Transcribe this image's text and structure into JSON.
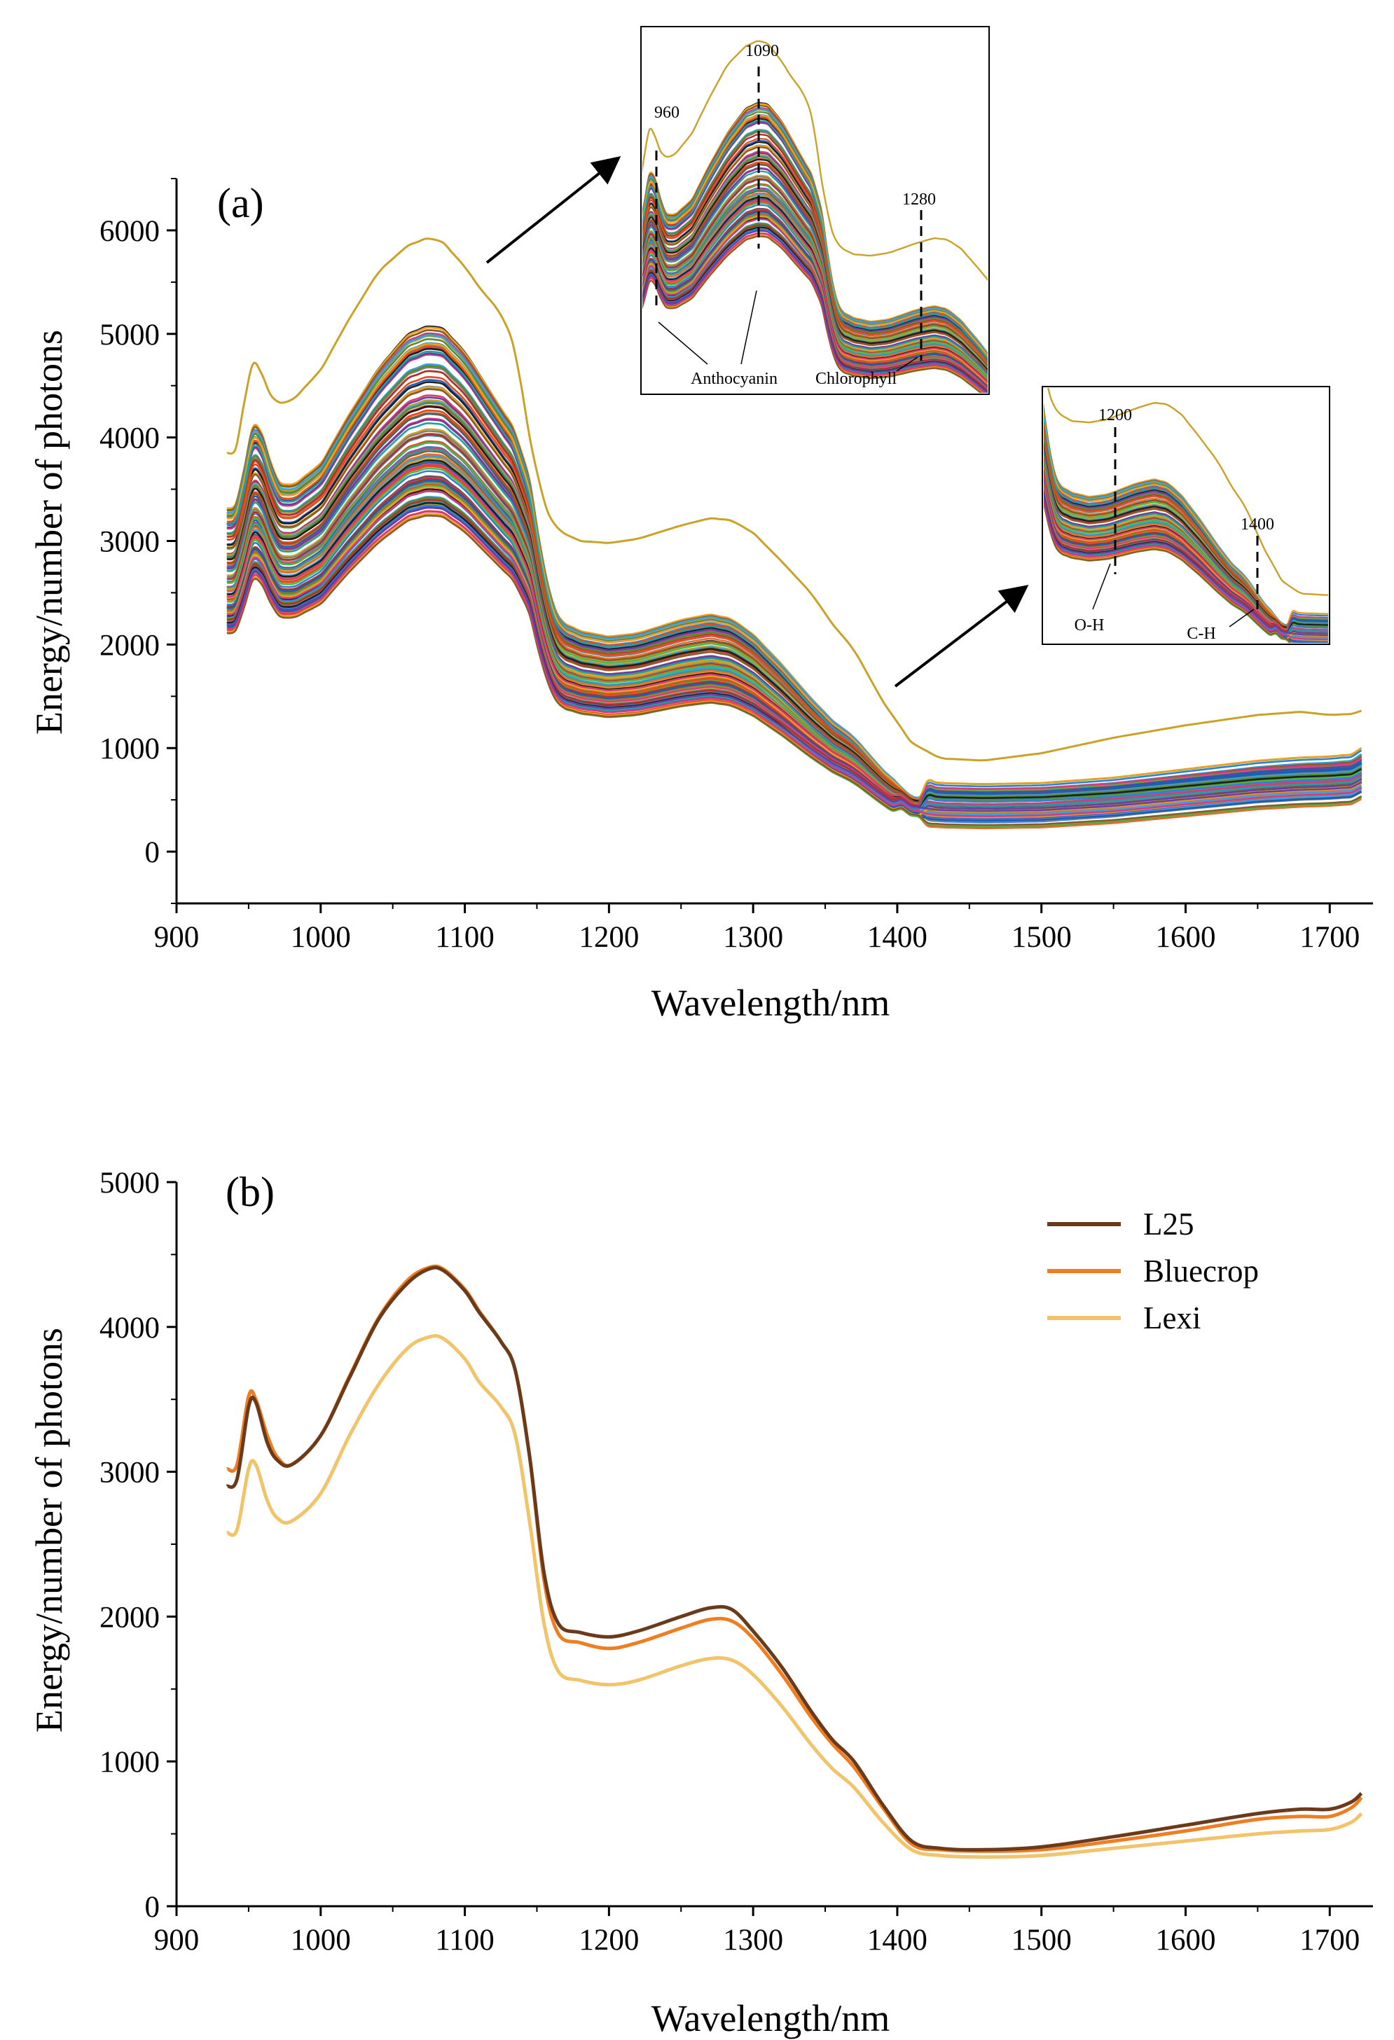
{
  "chart_data": [
    {
      "panel": "(a)",
      "type": "line",
      "xlabel": "Wavelength/nm",
      "ylabel": "Energy/number of photons",
      "xlim": [
        900,
        1730
      ],
      "ylim": [
        -500,
        6500
      ],
      "xticks": [
        "900",
        "1000",
        "1100",
        "1200",
        "1300",
        "1400",
        "1500",
        "1600",
        "1700"
      ],
      "yticks": [
        "0",
        "1000",
        "2000",
        "3000",
        "4000",
        "5000",
        "6000"
      ],
      "grid": false,
      "colors": [
        "#1f1f1f",
        "#e84a1e",
        "#2f7fd9",
        "#4cb84a",
        "#f0a020",
        "#8b5a2b",
        "#d93b7a",
        "#6a3fa0",
        "#20a0a0",
        "#c9a227",
        "#7f7f7f",
        "#3aa0e0",
        "#e07030",
        "#5c8a2a",
        "#b03030",
        "#1a5fb4"
      ],
      "series_count": 120,
      "base_curve": {
        "x": [
          935,
          942,
          950,
          955,
          963,
          970,
          980,
          1000,
          1020,
          1040,
          1060,
          1075,
          1085,
          1100,
          1110,
          1125,
          1135,
          1145,
          1155,
          1165,
          1180,
          1200,
          1220,
          1250,
          1270,
          1285,
          1300,
          1320,
          1340,
          1355,
          1370,
          1390,
          1410,
          1430,
          1460,
          1500,
          1550,
          1600,
          1650,
          1680,
          1700,
          1715,
          1722
        ],
        "y": [
          3050,
          3100,
          3600,
          3900,
          3550,
          3300,
          3250,
          3450,
          3900,
          4300,
          4600,
          4680,
          4650,
          4450,
          4250,
          3950,
          3750,
          3300,
          2500,
          2050,
          1950,
          1900,
          1930,
          2050,
          2100,
          2060,
          1920,
          1650,
          1350,
          1150,
          1000,
          700,
          470,
          430,
          420,
          430,
          480,
          560,
          640,
          670,
          680,
          700,
          760
        ]
      },
      "top_curve": {
        "x": [
          935,
          942,
          950,
          955,
          963,
          970,
          980,
          1000,
          1020,
          1040,
          1060,
          1075,
          1085,
          1100,
          1110,
          1125,
          1135,
          1145,
          1155,
          1165,
          1180,
          1200,
          1220,
          1250,
          1270,
          1285,
          1300,
          1320,
          1340,
          1355,
          1370,
          1390,
          1410,
          1430,
          1460,
          1500,
          1550,
          1600,
          1650,
          1680,
          1700,
          1715,
          1722
        ],
        "y": [
          3850,
          3900,
          4600,
          4780,
          4450,
          4340,
          4350,
          4650,
          5150,
          5600,
          5850,
          5930,
          5880,
          5650,
          5450,
          5200,
          4850,
          4000,
          3350,
          3100,
          3000,
          2980,
          3020,
          3150,
          3220,
          3200,
          3080,
          2800,
          2500,
          2200,
          1950,
          1450,
          1050,
          900,
          880,
          950,
          1100,
          1220,
          1320,
          1350,
          1320,
          1330,
          1360
        ]
      },
      "annotations": [
        "(a)"
      ],
      "insets": [
        {
          "labels": [
            "960",
            "1090",
            "1280"
          ],
          "bands": [
            "Anthocyanin",
            "Chlorophyll"
          ]
        },
        {
          "labels": [
            "1200",
            "1400"
          ],
          "bands": [
            "O-H",
            "C-H"
          ]
        }
      ]
    },
    {
      "panel": "(b)",
      "type": "line",
      "xlabel": "Wavelength/nm",
      "ylabel": "Energy/number of photons",
      "xlim": [
        900,
        1730
      ],
      "ylim": [
        0,
        5000
      ],
      "xticks": [
        "900",
        "1000",
        "1100",
        "1200",
        "1300",
        "1400",
        "1500",
        "1600",
        "1700"
      ],
      "yticks": [
        "0",
        "1000",
        "2000",
        "3000",
        "4000",
        "5000"
      ],
      "grid": false,
      "legend": "top-right",
      "annotations": [
        "(b)"
      ],
      "x": [
        935,
        942,
        950,
        955,
        963,
        970,
        980,
        1000,
        1020,
        1040,
        1060,
        1075,
        1085,
        1100,
        1110,
        1125,
        1135,
        1145,
        1155,
        1165,
        1180,
        1200,
        1220,
        1250,
        1270,
        1285,
        1300,
        1320,
        1340,
        1355,
        1370,
        1390,
        1410,
        1430,
        1460,
        1500,
        1550,
        1600,
        1650,
        1680,
        1700,
        1715,
        1722
      ],
      "series": [
        {
          "name": "L25",
          "color": "#6b3a1a",
          "values": [
            2900,
            2950,
            3450,
            3480,
            3200,
            3080,
            3050,
            3250,
            3650,
            4050,
            4300,
            4400,
            4390,
            4250,
            4100,
            3900,
            3700,
            3100,
            2300,
            1950,
            1890,
            1860,
            1900,
            2000,
            2060,
            2050,
            1900,
            1650,
            1350,
            1150,
            1000,
            700,
            450,
            400,
            390,
            410,
            480,
            560,
            640,
            670,
            670,
            720,
            780
          ]
        },
        {
          "name": "Bluecrop",
          "color": "#ef7d22",
          "values": [
            3020,
            3050,
            3520,
            3500,
            3250,
            3100,
            3050,
            3250,
            3660,
            4060,
            4320,
            4410,
            4400,
            4260,
            4110,
            3900,
            3700,
            3100,
            2250,
            1880,
            1820,
            1780,
            1820,
            1920,
            1980,
            1970,
            1850,
            1600,
            1310,
            1120,
            960,
            680,
            430,
            390,
            380,
            390,
            450,
            520,
            600,
            620,
            620,
            680,
            750
          ]
        },
        {
          "name": "Lexi",
          "color": "#f1c46b",
          "values": [
            2580,
            2600,
            3020,
            3050,
            2800,
            2680,
            2660,
            2850,
            3250,
            3600,
            3850,
            3930,
            3920,
            3780,
            3620,
            3450,
            3250,
            2650,
            1950,
            1620,
            1560,
            1530,
            1560,
            1660,
            1710,
            1700,
            1600,
            1380,
            1120,
            950,
            820,
            580,
            390,
            350,
            340,
            350,
            400,
            450,
            500,
            520,
            530,
            580,
            640
          ]
        }
      ]
    }
  ]
}
